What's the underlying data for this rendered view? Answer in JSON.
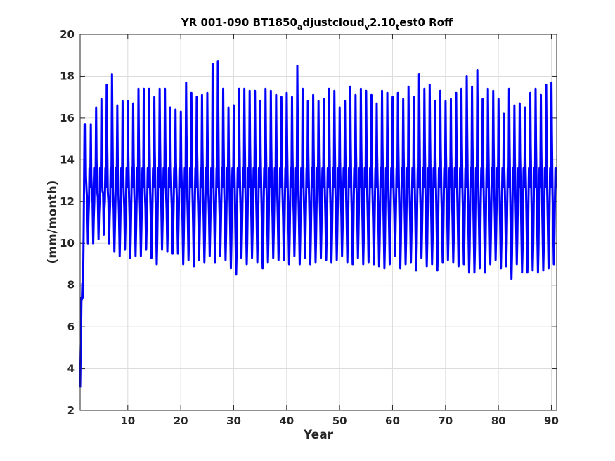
{
  "chart_data": {
    "type": "line",
    "title": {
      "parts": [
        {
          "text": "YR 001-090 BT1850",
          "sub": false
        },
        {
          "text": "a",
          "sub": true
        },
        {
          "text": "djustcloud",
          "sub": false
        },
        {
          "text": "v",
          "sub": true
        },
        {
          "text": "2.10",
          "sub": false
        },
        {
          "text": "t",
          "sub": true
        },
        {
          "text": "est0 Roff",
          "sub": false
        }
      ]
    },
    "xlabel": "Year",
    "ylabel": "(mm/month)",
    "xlim": [
      1,
      91
    ],
    "ylim": [
      2,
      20
    ],
    "xticks": [
      10,
      20,
      30,
      40,
      50,
      60,
      70,
      80,
      90
    ],
    "yticks": [
      2,
      4,
      6,
      8,
      10,
      12,
      14,
      16,
      18,
      20
    ],
    "grid": true,
    "series": [
      {
        "color": "#0000ff",
        "spinup": [
          3.1,
          4.6,
          5.7,
          7.4,
          7.3,
          8.1,
          7.4,
          8.6,
          10.6,
          13.2,
          15.7
        ],
        "annual_max": [
          15.7,
          15.7,
          16.5,
          16.9,
          17.6,
          18.1,
          16.6,
          16.8,
          16.8,
          16.7,
          17.4,
          17.4,
          17.4,
          17.0,
          17.4,
          17.4,
          16.5,
          16.4,
          16.3,
          17.7,
          17.2,
          17.0,
          17.1,
          17.2,
          18.6,
          18.7,
          17.4,
          16.5,
          16.6,
          17.4,
          17.4,
          17.3,
          17.3,
          16.8,
          17.4,
          17.3,
          17.1,
          17.0,
          17.2,
          17.0,
          18.5,
          17.4,
          16.8,
          17.1,
          16.8,
          16.9,
          17.4,
          17.3,
          16.5,
          16.8,
          17.5,
          17.1,
          17.4,
          17.3,
          17.1,
          16.7,
          17.3,
          17.2,
          17.0,
          17.2,
          16.9,
          17.5,
          17.0,
          18.1,
          17.4,
          17.6,
          16.8,
          17.3,
          16.8,
          16.9,
          17.2,
          17.4,
          18.0,
          17.5,
          18.3,
          16.9,
          17.4,
          17.3,
          16.9,
          16.2,
          17.4,
          16.6,
          16.7,
          16.5,
          17.2,
          17.4,
          17.1,
          17.6,
          17.7,
          17.8
        ],
        "annual_min": [
          10.0,
          10.0,
          10.2,
          10.4,
          10.0,
          9.6,
          9.4,
          9.7,
          9.3,
          9.4,
          9.4,
          9.7,
          9.3,
          9.0,
          9.7,
          9.6,
          9.5,
          9.5,
          9.0,
          9.2,
          8.9,
          9.2,
          9.1,
          9.4,
          9.1,
          9.4,
          9.2,
          8.8,
          8.5,
          9.3,
          9.0,
          9.3,
          9.1,
          8.8,
          9.1,
          9.3,
          9.2,
          9.2,
          9.0,
          9.4,
          9.0,
          9.3,
          9.0,
          9.1,
          9.3,
          9.2,
          9.1,
          9.2,
          9.4,
          9.1,
          9.0,
          9.3,
          9.0,
          9.1,
          9.0,
          8.9,
          8.8,
          9.0,
          9.4,
          8.8,
          9.0,
          9.1,
          8.7,
          9.3,
          8.9,
          9.0,
          8.7,
          9.1,
          9.2,
          9.1,
          8.9,
          9.0,
          8.6,
          8.6,
          8.8,
          8.6,
          9.0,
          9.2,
          8.8,
          8.9,
          8.3,
          9.0,
          8.6,
          8.6,
          8.7,
          8.6,
          8.7,
          8.8,
          9.0,
          9.0
        ],
        "shoulder": 13.0
      }
    ]
  }
}
